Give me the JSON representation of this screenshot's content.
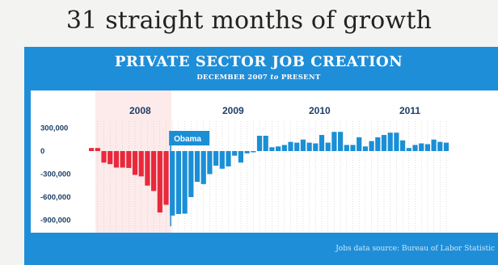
{
  "headline": "31 straight months of growth",
  "panel": {
    "title": "PRIVATE SECTOR JOB CREATION",
    "subtitle_a": "DECEMBER 2007",
    "subtitle_b": "to",
    "subtitle_c": "PRESENT",
    "source": "Jobs data source: Bureau of Labor Statistic"
  },
  "colors": {
    "panel": "#1f8ed8",
    "negative_era": "#e8293c",
    "positive_era": "#1a8fd6",
    "shade": "#fdeaea"
  },
  "chart_data": {
    "type": "bar",
    "title": "PRIVATE SECTOR JOB CREATION",
    "years": [
      "2008",
      "2009",
      "2010",
      "2011"
    ],
    "yticks": [
      300000,
      0,
      -300000,
      -600000,
      -900000
    ],
    "ytick_labels": [
      "300,000",
      "0",
      "-300,000",
      "-600,000",
      "-900,000"
    ],
    "ylim": [
      -900000,
      300000
    ],
    "annotation": "Obama",
    "months": [
      "Dec 2007",
      "Jan 2008",
      "Feb 2008",
      "Mar 2008",
      "Apr 2008",
      "May 2008",
      "Jun 2008",
      "Jul 2008",
      "Aug 2008",
      "Sep 2008",
      "Oct 2008",
      "Nov 2008",
      "Dec 2008",
      "Jan 2009",
      "Feb 2009",
      "Mar 2009",
      "Apr 2009",
      "May 2009",
      "Jun 2009",
      "Jul 2009",
      "Aug 2009",
      "Sep 2009",
      "Oct 2009",
      "Nov 2009",
      "Dec 2009",
      "Jan 2010",
      "Feb 2010",
      "Mar 2010",
      "Apr 2010",
      "May 2010",
      "Jun 2010",
      "Jul 2010",
      "Aug 2010",
      "Sep 2010",
      "Oct 2010",
      "Nov 2010",
      "Dec 2010",
      "Jan 2011",
      "Feb 2011",
      "Mar 2011",
      "Apr 2011",
      "May 2011",
      "Jun 2011",
      "Jul 2011",
      "Aug 2011",
      "Sep 2011",
      "Oct 2011",
      "Nov 2011",
      "Dec 2011",
      "Jan 2012",
      "Feb 2012",
      "Mar 2012",
      "Apr 2012",
      "May 2012",
      "Jun 2012",
      "Jul 2012",
      "Aug 2012",
      "Sep 2012"
    ],
    "values": [
      40000,
      40000,
      -150000,
      -170000,
      -215000,
      -215000,
      -220000,
      -310000,
      -330000,
      -450000,
      -520000,
      -800000,
      -700000,
      -840000,
      -820000,
      -815000,
      -600000,
      -400000,
      -430000,
      -300000,
      -190000,
      -230000,
      -200000,
      -60000,
      -150000,
      -30000,
      -15000,
      200000,
      200000,
      50000,
      60000,
      80000,
      120000,
      110000,
      150000,
      110000,
      100000,
      210000,
      110000,
      250000,
      250000,
      80000,
      80000,
      180000,
      60000,
      130000,
      180000,
      210000,
      240000,
      240000,
      140000,
      40000,
      80000,
      100000,
      90000,
      150000,
      120000,
      110000
    ],
    "red_count": 13,
    "series": [
      {
        "name": "",
        "color": "#e8293c"
      },
      {
        "name": "",
        "color": "#1a8fd6"
      }
    ]
  }
}
